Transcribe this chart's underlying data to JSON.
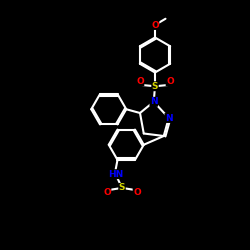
{
  "bg_color": "#000000",
  "bond_color": "#ffffff",
  "atom_colors": {
    "O": "#ff0000",
    "S": "#d4d400",
    "N": "#0000ff",
    "C": "#ffffff"
  },
  "bond_width": 1.5,
  "figsize": [
    2.5,
    2.5
  ],
  "dpi": 100
}
